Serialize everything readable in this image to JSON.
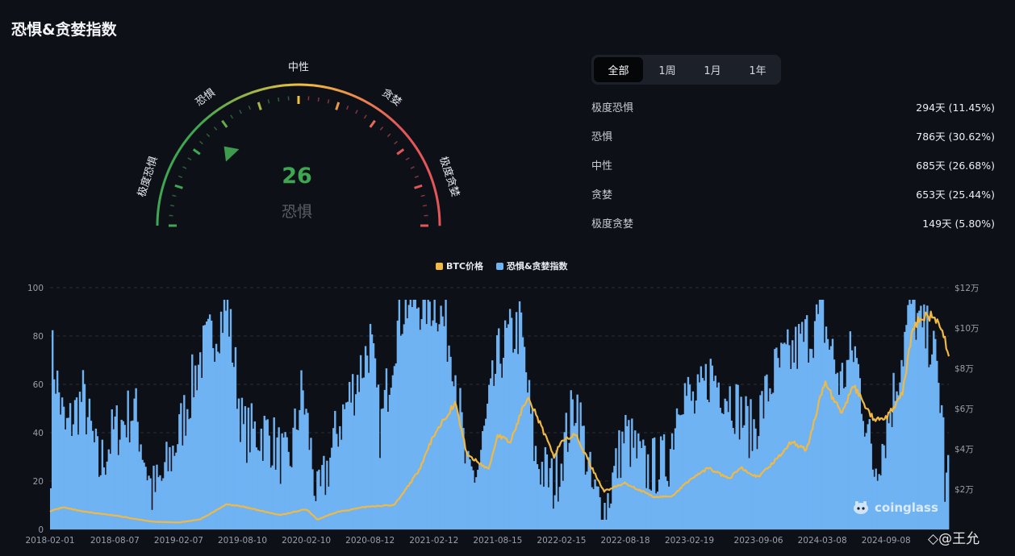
{
  "page": {
    "title": "恐惧&贪婪指数"
  },
  "gauge": {
    "value": 26,
    "status": "恐惧",
    "segment_labels": [
      "极度恐惧",
      "恐惧",
      "中性",
      "贪婪",
      "极度贪婪"
    ],
    "colors": {
      "fear": "#3fa652",
      "neutral": "#f0c240",
      "greed": "#e5565a"
    }
  },
  "tabs": [
    {
      "label": "全部",
      "active": true
    },
    {
      "label": "1周",
      "active": false
    },
    {
      "label": "1月",
      "active": false
    },
    {
      "label": "1年",
      "active": false
    }
  ],
  "stats": [
    {
      "label": "极度恐惧",
      "value": "294天 (11.45%)"
    },
    {
      "label": "恐惧",
      "value": "786天 (30.62%)"
    },
    {
      "label": "中性",
      "value": "685天 (26.68%)"
    },
    {
      "label": "贪婪",
      "value": "653天 (25.44%)"
    },
    {
      "label": "极度贪婪",
      "value": "149天 (5.80%)"
    }
  ],
  "watermark": {
    "brand": "coinglass",
    "author": "@王允"
  },
  "chart_data": {
    "type": "bar+line",
    "legend_placement": "top-center",
    "grid": true,
    "x_tick_labels": [
      "2018-02-01",
      "2018-08-07",
      "2019-02-07",
      "2019-08-10",
      "2020-02-10",
      "2020-08-12",
      "2021-02-12",
      "2021-08-15",
      "2022-02-15",
      "2022-08-18",
      "2023-02-19",
      "2023-09-06",
      "2024-03-08",
      "2024-09-08"
    ],
    "y_left": {
      "ticks": [
        0,
        20,
        40,
        60,
        80,
        100
      ],
      "lim": [
        0,
        100
      ]
    },
    "y_right": {
      "tick_labels": [
        "$2万",
        "$4万",
        "$6万",
        "$8万",
        "$10万",
        "$12万"
      ],
      "ticks": [
        20000,
        40000,
        60000,
        80000,
        100000,
        120000
      ],
      "lim": [
        0,
        120000
      ]
    },
    "series": [
      {
        "name": "恐惧&贪婪指数",
        "kind": "bar",
        "axis": "left",
        "color": "#6fb3f3",
        "anchors": [
          [
            "2018-02-01",
            30
          ],
          [
            "2018-02-05",
            72
          ],
          [
            "2018-03-15",
            40
          ],
          [
            "2018-05-05",
            55
          ],
          [
            "2018-06-20",
            25
          ],
          [
            "2018-08-01",
            40
          ],
          [
            "2018-10-01",
            50
          ],
          [
            "2018-11-20",
            15
          ],
          [
            "2018-12-20",
            20
          ],
          [
            "2019-02-07",
            40
          ],
          [
            "2019-04-05",
            70
          ],
          [
            "2019-06-26",
            92
          ],
          [
            "2019-08-10",
            40
          ],
          [
            "2019-10-20",
            40
          ],
          [
            "2019-12-20",
            25
          ],
          [
            "2020-01-28",
            58
          ],
          [
            "2020-02-15",
            40
          ],
          [
            "2020-03-13",
            10
          ],
          [
            "2020-05-10",
            42
          ],
          [
            "2020-07-25",
            70
          ],
          [
            "2020-08-12",
            78
          ],
          [
            "2020-09-10",
            40
          ],
          [
            "2020-10-22",
            80
          ],
          [
            "2020-11-20",
            94
          ],
          [
            "2021-01-15",
            94
          ],
          [
            "2021-02-20",
            94
          ],
          [
            "2021-04-10",
            72
          ],
          [
            "2021-05-19",
            20
          ],
          [
            "2021-06-20",
            25
          ],
          [
            "2021-08-15",
            70
          ],
          [
            "2021-09-10",
            78
          ],
          [
            "2021-10-20",
            84
          ],
          [
            "2021-12-01",
            30
          ],
          [
            "2022-01-25",
            18
          ],
          [
            "2022-03-30",
            55
          ],
          [
            "2022-05-15",
            15
          ],
          [
            "2022-06-20",
            8
          ],
          [
            "2022-08-18",
            40
          ],
          [
            "2022-10-15",
            25
          ],
          [
            "2022-12-20",
            28
          ],
          [
            "2023-01-25",
            60
          ],
          [
            "2023-03-10",
            50
          ],
          [
            "2023-04-20",
            65
          ],
          [
            "2023-06-20",
            55
          ],
          [
            "2023-08-20",
            40
          ],
          [
            "2023-10-25",
            65
          ],
          [
            "2023-12-10",
            72
          ],
          [
            "2024-03-10",
            88
          ],
          [
            "2024-05-01",
            60
          ],
          [
            "2024-06-10",
            75
          ],
          [
            "2024-08-05",
            25
          ],
          [
            "2024-09-08",
            40
          ],
          [
            "2024-10-25",
            72
          ],
          [
            "2024-11-22",
            94
          ],
          [
            "2024-12-20",
            82
          ],
          [
            "2025-01-20",
            78
          ],
          [
            "2025-02-20",
            48
          ],
          [
            "2025-03-01",
            10
          ],
          [
            "2025-03-08",
            26
          ]
        ]
      },
      {
        "name": "BTC价格",
        "kind": "line",
        "axis": "right",
        "color": "#f0b844",
        "anchors": [
          [
            "2018-02-01",
            9000
          ],
          [
            "2018-03-10",
            11000
          ],
          [
            "2018-05-01",
            9000
          ],
          [
            "2018-08-07",
            6900
          ],
          [
            "2018-11-25",
            3800
          ],
          [
            "2019-02-07",
            3400
          ],
          [
            "2019-04-10",
            5000
          ],
          [
            "2019-06-26",
            12500
          ],
          [
            "2019-08-10",
            11300
          ],
          [
            "2019-11-25",
            7100
          ],
          [
            "2020-02-10",
            10000
          ],
          [
            "2020-03-13",
            4900
          ],
          [
            "2020-05-10",
            8700
          ],
          [
            "2020-08-12",
            11500
          ],
          [
            "2020-10-20",
            12000
          ],
          [
            "2020-12-31",
            29000
          ],
          [
            "2021-02-12",
            47000
          ],
          [
            "2021-04-14",
            63000
          ],
          [
            "2021-05-19",
            37000
          ],
          [
            "2021-07-20",
            29800
          ],
          [
            "2021-08-15",
            47000
          ],
          [
            "2021-09-20",
            43000
          ],
          [
            "2021-11-10",
            67000
          ],
          [
            "2022-01-24",
            36000
          ],
          [
            "2022-02-15",
            44000
          ],
          [
            "2022-03-28",
            47000
          ],
          [
            "2022-05-15",
            30000
          ],
          [
            "2022-06-18",
            19000
          ],
          [
            "2022-08-18",
            23000
          ],
          [
            "2022-11-09",
            16000
          ],
          [
            "2022-12-31",
            16500
          ],
          [
            "2023-02-19",
            24500
          ],
          [
            "2023-04-14",
            30500
          ],
          [
            "2023-06-15",
            25000
          ],
          [
            "2023-07-15",
            31000
          ],
          [
            "2023-09-06",
            25800
          ],
          [
            "2023-10-25",
            34500
          ],
          [
            "2023-12-10",
            43500
          ],
          [
            "2024-01-23",
            39500
          ],
          [
            "2024-03-14",
            73000
          ],
          [
            "2024-05-01",
            58000
          ],
          [
            "2024-06-07",
            71000
          ],
          [
            "2024-08-05",
            54000
          ],
          [
            "2024-09-08",
            55000
          ],
          [
            "2024-10-25",
            67000
          ],
          [
            "2024-11-22",
            98000
          ],
          [
            "2024-12-17",
            106000
          ],
          [
            "2025-01-20",
            106000
          ],
          [
            "2025-02-20",
            97000
          ],
          [
            "2025-03-08",
            86000
          ]
        ]
      }
    ]
  }
}
